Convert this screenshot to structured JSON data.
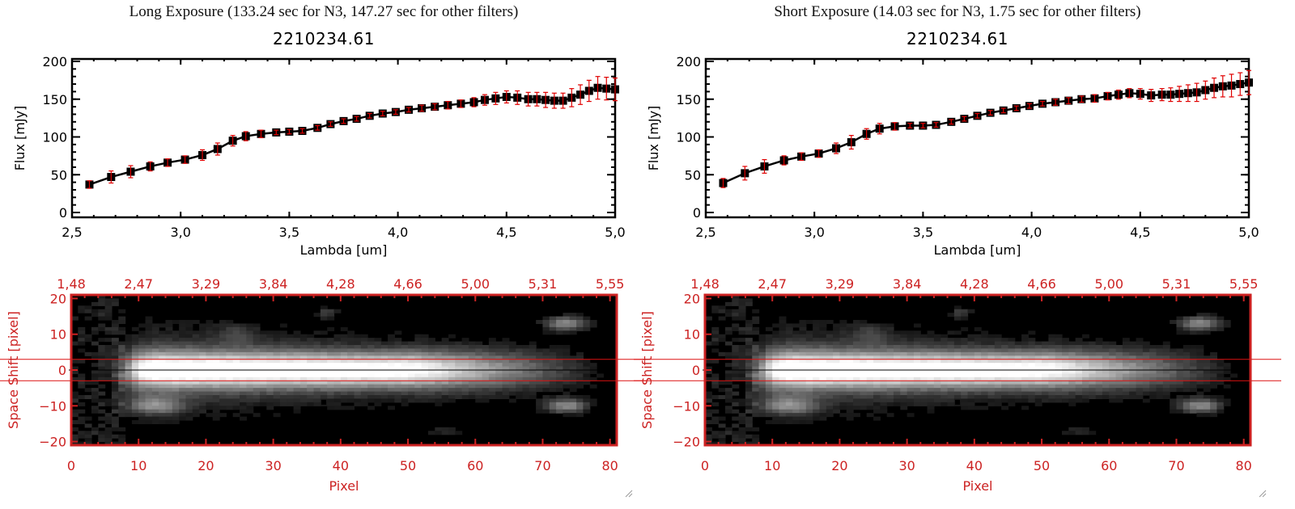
{
  "panels": [
    {
      "id": "long",
      "exposure_title": "Long Exposure (133.24 sec for N3, 147.27 sec for other filters)",
      "object_title": "2210234.61"
    },
    {
      "id": "short",
      "exposure_title": "Short Exposure (14.03 sec for N3, 1.75 sec for other filters)",
      "object_title": "2210234.61"
    }
  ],
  "colors": {
    "spectrum_line": "#000000",
    "error_bar": "#e00000",
    "image_axis": "#cc2222",
    "aperture_line": "#dd1111",
    "center_line": "#000000"
  },
  "chart_data": [
    {
      "type": "line",
      "panel": "long",
      "title": "2210234.61",
      "xlabel": "Lambda [um]",
      "ylabel": "Flux [mJy]",
      "xlim": [
        2.5,
        5.0
      ],
      "ylim": [
        0,
        200
      ],
      "xticks": [
        "2.5",
        "3.0",
        "3.5",
        "4.0",
        "4.5",
        "5.0"
      ],
      "yticks": [
        "0",
        "50",
        "100",
        "150",
        "200"
      ],
      "grid": false,
      "series": [
        {
          "name": "Flux",
          "x": [
            2.58,
            2.68,
            2.77,
            2.86,
            2.94,
            3.02,
            3.1,
            3.17,
            3.24,
            3.3,
            3.37,
            3.44,
            3.5,
            3.56,
            3.63,
            3.69,
            3.75,
            3.81,
            3.87,
            3.93,
            3.99,
            4.05,
            4.11,
            4.17,
            4.23,
            4.29,
            4.35,
            4.4,
            4.45,
            4.5,
            4.55,
            4.6,
            4.64,
            4.68,
            4.72,
            4.76,
            4.8,
            4.84,
            4.88,
            4.92,
            4.96,
            5.0
          ],
          "y": [
            37,
            47,
            54,
            61,
            66,
            70,
            76,
            84,
            95,
            101,
            104,
            106,
            107,
            108,
            112,
            117,
            121,
            124,
            128,
            131,
            133,
            136,
            138,
            140,
            142,
            144,
            146,
            149,
            151,
            153,
            152,
            150,
            150,
            149,
            148,
            148,
            152,
            156,
            161,
            165,
            164,
            163
          ],
          "err": [
            5,
            8,
            8,
            6,
            5,
            5,
            7,
            8,
            7,
            6,
            5,
            3,
            3,
            3,
            3,
            3,
            3,
            3,
            3,
            3,
            3,
            3,
            4,
            4,
            5,
            5,
            6,
            7,
            8,
            8,
            9,
            9,
            9,
            10,
            10,
            10,
            12,
            13,
            14,
            15,
            15,
            15
          ]
        }
      ]
    },
    {
      "type": "heatmap",
      "panel": "long",
      "xlabel": "Pixel",
      "ylabel": "Space Shift [pixel]",
      "xlim": [
        0,
        81
      ],
      "ylim": [
        -21,
        21
      ],
      "xticks": [
        "0",
        "10",
        "20",
        "30",
        "40",
        "50",
        "60",
        "70",
        "80"
      ],
      "yticks": [
        "-20",
        "-10",
        "0",
        "10",
        "20"
      ],
      "top_xticks": [
        "1.48",
        "2.47",
        "3.29",
        "3.84",
        "4.28",
        "4.66",
        "5.00",
        "5.31",
        "5.55"
      ],
      "top_xlabel": "Lambda [um]",
      "aperture": [
        -3,
        3
      ],
      "center": 0
    },
    {
      "type": "line",
      "panel": "short",
      "title": "2210234.61",
      "xlabel": "Lambda [um]",
      "ylabel": "Flux [mJy]",
      "xlim": [
        2.5,
        5.0
      ],
      "ylim": [
        0,
        200
      ],
      "xticks": [
        "2.5",
        "3.0",
        "3.5",
        "4.0",
        "4.5",
        "5.0"
      ],
      "yticks": [
        "0",
        "50",
        "100",
        "150",
        "200"
      ],
      "grid": false,
      "series": [
        {
          "name": "Flux",
          "x": [
            2.58,
            2.68,
            2.77,
            2.86,
            2.94,
            3.02,
            3.1,
            3.17,
            3.24,
            3.3,
            3.37,
            3.44,
            3.5,
            3.56,
            3.63,
            3.69,
            3.75,
            3.81,
            3.87,
            3.93,
            3.99,
            4.05,
            4.11,
            4.17,
            4.23,
            4.29,
            4.35,
            4.4,
            4.45,
            4.5,
            4.55,
            4.6,
            4.64,
            4.68,
            4.72,
            4.76,
            4.8,
            4.84,
            4.88,
            4.92,
            4.96,
            5.0
          ],
          "y": [
            39,
            52,
            61,
            69,
            74,
            78,
            85,
            93,
            104,
            111,
            114,
            115,
            115,
            116,
            120,
            124,
            128,
            132,
            135,
            138,
            141,
            144,
            146,
            148,
            150,
            151,
            154,
            156,
            158,
            157,
            155,
            156,
            156,
            157,
            158,
            159,
            162,
            165,
            167,
            168,
            170,
            172
          ],
          "err": [
            6,
            9,
            9,
            6,
            5,
            5,
            7,
            9,
            7,
            7,
            5,
            3,
            3,
            3,
            3,
            3,
            3,
            3,
            3,
            3,
            3,
            3,
            4,
            4,
            4,
            5,
            5,
            6,
            6,
            7,
            8,
            8,
            9,
            10,
            11,
            12,
            12,
            13,
            14,
            15,
            15,
            16
          ]
        }
      ]
    },
    {
      "type": "heatmap",
      "panel": "short",
      "xlabel": "Pixel",
      "ylabel": "Space Shift [pixel]",
      "xlim": [
        0,
        81
      ],
      "ylim": [
        -21,
        21
      ],
      "xticks": [
        "0",
        "10",
        "20",
        "30",
        "40",
        "50",
        "60",
        "70",
        "80"
      ],
      "yticks": [
        "-20",
        "-10",
        "0",
        "10",
        "20"
      ],
      "top_xticks": [
        "1.48",
        "2.47",
        "3.29",
        "3.84",
        "4.28",
        "4.66",
        "5.00",
        "5.31",
        "5.55"
      ],
      "top_xlabel": "Lambda [um]",
      "aperture": [
        -3,
        3
      ],
      "center": 0
    }
  ]
}
